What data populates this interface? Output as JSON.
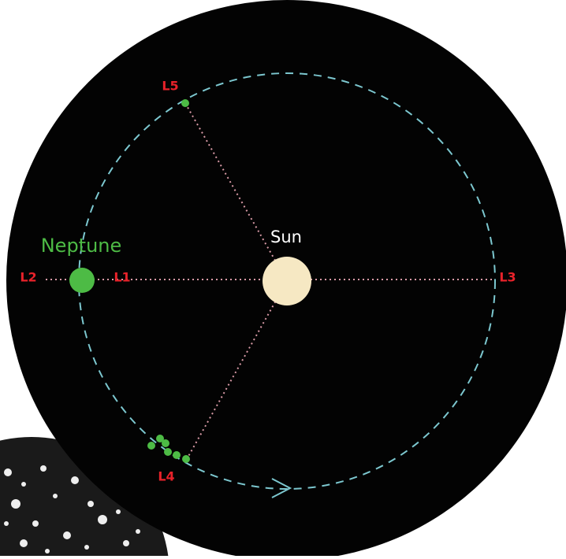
{
  "labels": {
    "neptune": "Neptune",
    "sun": "Sun",
    "l1": "L1",
    "l2": "L2",
    "l3": "L3",
    "l4": "L4",
    "l5": "L5"
  }
}
